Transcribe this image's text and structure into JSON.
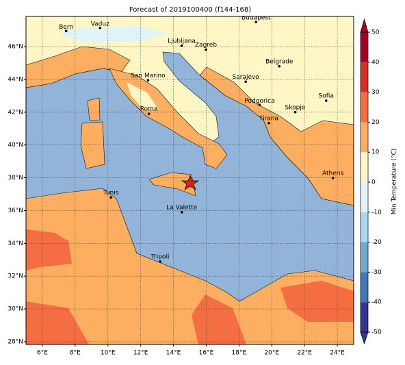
{
  "map": {
    "title": "Forecast of 2019100400 (f144-168)",
    "lonlim": [
      5,
      25
    ],
    "latlim": [
      27.83,
      47.84
    ],
    "xticks": [
      {
        "value": 6,
        "label": "6°E"
      },
      {
        "value": 8,
        "label": "8°E"
      },
      {
        "value": 10,
        "label": "10°E"
      },
      {
        "value": 12,
        "label": "12°E"
      },
      {
        "value": 14,
        "label": "14°E"
      },
      {
        "value": 16,
        "label": "16°E"
      },
      {
        "value": 18,
        "label": "18°E"
      },
      {
        "value": 20,
        "label": "20°E"
      },
      {
        "value": 22,
        "label": "22°E"
      },
      {
        "value": 24,
        "label": "24°E"
      }
    ],
    "yticks": [
      {
        "value": 28,
        "label": "28°N"
      },
      {
        "value": 30,
        "label": "30°N"
      },
      {
        "value": 32,
        "label": "32°N"
      },
      {
        "value": 34,
        "label": "34°N"
      },
      {
        "value": 36,
        "label": "36°N"
      },
      {
        "value": 38,
        "label": "38°N"
      },
      {
        "value": 40,
        "label": "40°N"
      },
      {
        "value": 42,
        "label": "42°N"
      },
      {
        "value": 44,
        "label": "44°N"
      },
      {
        "value": 46,
        "label": "46°N"
      }
    ],
    "grid": true,
    "cities": [
      "Bern",
      "Vaduz",
      "Budapest",
      "Ljubljana",
      "Zagreb",
      "Belgrade",
      "Sarajevo",
      "San Marino",
      "Sofia",
      "Podgorica",
      "Skopje",
      "Roma",
      "Tirana",
      "Athens",
      "Tunis",
      "La Valette",
      "Tripoli"
    ],
    "colorbar": {
      "label": "Min Temperature (°C)",
      "ticks": [
        -50,
        -40,
        -30,
        -20,
        -10,
        0,
        10,
        20,
        30,
        40,
        50
      ],
      "colors": [
        "#313695",
        "#4575b4",
        "#74a9cf",
        "#abd9e9",
        "#e0f3f8",
        "#fef6c4",
        "#fdae61",
        "#f46d43",
        "#d73027",
        "#a50026"
      ]
    }
  }
}
